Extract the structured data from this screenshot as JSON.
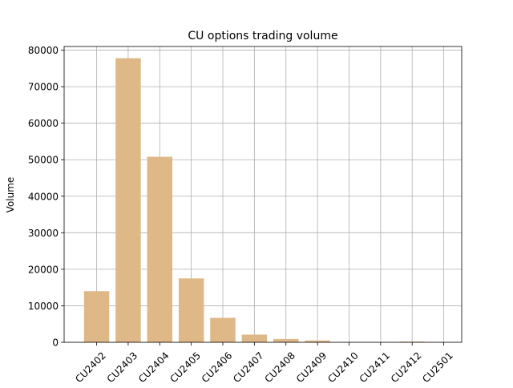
{
  "chart_data": {
    "type": "bar",
    "title": "CU options trading volume",
    "xlabel": "",
    "ylabel": "Volume",
    "categories": [
      "CU2402",
      "CU2403",
      "CU2404",
      "CU2405",
      "CU2406",
      "CU2407",
      "CU2408",
      "CU2409",
      "CU2410",
      "CU2411",
      "CU2412",
      "CU2501"
    ],
    "values": [
      14000,
      77800,
      50800,
      17500,
      6700,
      2100,
      900,
      500,
      50,
      30,
      200,
      50
    ],
    "ylim": [
      0,
      81000
    ],
    "yticks": [
      0,
      10000,
      20000,
      30000,
      40000,
      50000,
      60000,
      70000,
      80000
    ],
    "grid": true,
    "bar_color": "#deb887",
    "grid_color": "#b0b0b0"
  }
}
